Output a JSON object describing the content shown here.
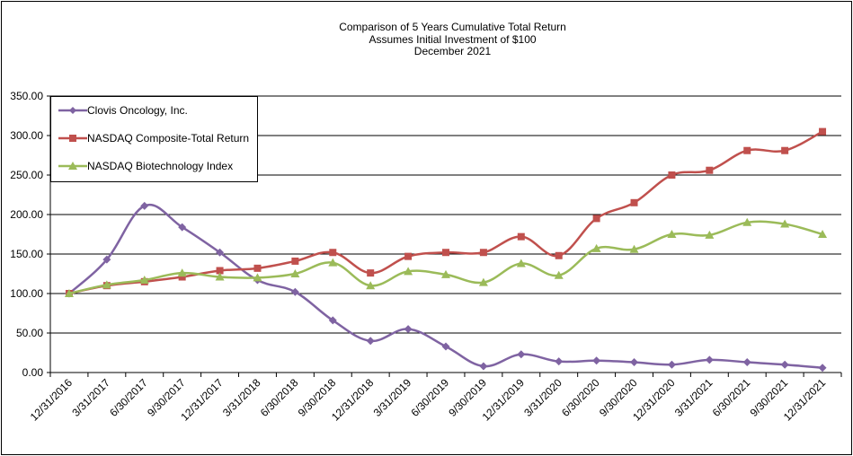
{
  "chart_data": {
    "type": "line",
    "title": [
      "Comparison  of 5 Years Cumulative Total Return",
      "Assumes Initial Investment  of $100",
      "December  2021"
    ],
    "categories": [
      "12/31/2016",
      "3/31/2017",
      "6/30/2017",
      "9/30/2017",
      "12/31/2017",
      "3/31/2018",
      "6/30/2018",
      "9/30/2018",
      "12/31/2018",
      "3/31/2019",
      "6/30/2019",
      "9/30/2019",
      "12/31/2019",
      "3/31/2020",
      "6/30/2020",
      "9/30/2020",
      "12/31/2020",
      "3/31/2021",
      "6/30/2021",
      "9/30/2021",
      "12/31/2021"
    ],
    "ylim": [
      0,
      350
    ],
    "yticks": [
      "0.00",
      "50.00",
      "100.00",
      "150.00",
      "200.00",
      "250.00",
      "300.00",
      "350.00"
    ],
    "series": [
      {
        "name": "Clovis Oncology, Inc.",
        "color": "#7F63A2",
        "marker": "diamond",
        "values": [
          100,
          143,
          211,
          184,
          152,
          117,
          102,
          66,
          40,
          55,
          33,
          8,
          23,
          14,
          15,
          13,
          10,
          16,
          13,
          10,
          6
        ]
      },
      {
        "name": "NASDAQ Composite-Total Return",
        "color": "#C0504D",
        "marker": "square",
        "values": [
          100,
          110,
          115,
          121,
          129,
          132,
          141,
          152,
          126,
          147,
          152,
          152,
          172,
          148,
          195,
          215,
          250,
          256,
          281,
          281,
          305
        ]
      },
      {
        "name": "NASDAQ Biotechnology Index",
        "color": "#9BBB59",
        "marker": "triangle",
        "values": [
          100,
          111,
          117,
          126,
          121,
          120,
          125,
          139,
          110,
          128,
          124,
          114,
          138,
          123,
          157,
          156,
          175,
          174,
          190,
          188,
          175
        ]
      }
    ]
  },
  "legend": {
    "items": [
      "Clovis Oncology, Inc.",
      "NASDAQ Composite-Total Return",
      "NASDAQ Biotechnology Index"
    ]
  }
}
